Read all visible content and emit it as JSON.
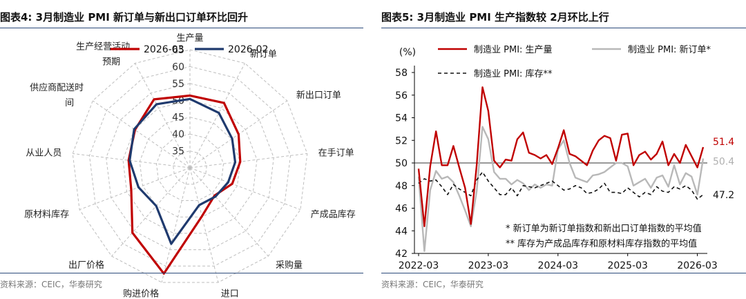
{
  "left": {
    "title": "图表4:  3月制造业 PMI 新订单与新出口订单环比回升",
    "source": "资料来源：CEIC，华泰研究"
  },
  "right": {
    "title": "图表5:  3月制造业 PMI 生产指数较 2月环比上行",
    "source": "资料来源：CEIC，华泰研究"
  },
  "chart_data": [
    {
      "type": "radar",
      "title": "3月制造业 PMI 新订单与新出口订单环比回升",
      "axes": [
        "生产量",
        "新订单",
        "新出口订单",
        "在手订单",
        "产成品库存",
        "采购量",
        "进口",
        "购进价格",
        "出厂价格",
        "原材料库存",
        "从业人员",
        "供应商配送时间",
        "生产经营活动预期"
      ],
      "rings": [
        35,
        40,
        45,
        50,
        55,
        60,
        65
      ],
      "range": [
        30,
        65
      ],
      "series": [
        {
          "name": "2026-03",
          "color": "#c00000",
          "values": [
            51.4,
            51.7,
            47.5,
            45.0,
            43.4,
            41.0,
            44.8,
            62.3,
            55.7,
            48.6,
            48.3,
            49.8,
            52.9
          ]
        },
        {
          "name": "2026-02",
          "color": "#1f3a6e",
          "values": [
            50.4,
            48.4,
            45.2,
            43.5,
            42.1,
            41.4,
            41.4,
            53.2,
            45.1,
            46.3,
            48.0,
            50.1,
            51.3
          ]
        }
      ],
      "legend": [
        "2026-03",
        "2026-02"
      ]
    },
    {
      "type": "line",
      "title": "3月制造业 PMI 生产指数较 2月环比上行",
      "ylabel": "(%)",
      "ylim": [
        42,
        58
      ],
      "yticks": [
        42,
        44,
        46,
        48,
        50,
        52,
        54,
        56,
        58
      ],
      "xticks": [
        "2022-03",
        "2023-03",
        "2024-03",
        "2025-03",
        "2026-03"
      ],
      "reference_line": 50,
      "series": [
        {
          "name": "制造业 PMI: 生产量",
          "color": "#c00000",
          "end_label": "51.4",
          "values": [
            49.5,
            44.4,
            49.7,
            52.8,
            49.8,
            49.8,
            51.5,
            49.6,
            47.8,
            44.6,
            49.8,
            56.7,
            54.6,
            50.2,
            49.6,
            50.3,
            50.2,
            52.1,
            52.7,
            50.9,
            50.7,
            50.4,
            50.7,
            49.9,
            51.3,
            52.9,
            50.8,
            50.6,
            50.2,
            49.8,
            51.1,
            52.0,
            52.4,
            52.2,
            50.2,
            52.5,
            52.6,
            49.8,
            50.7,
            51.0,
            50.3,
            50.8,
            51.9,
            49.8,
            50.8,
            50.0,
            51.6,
            50.6,
            49.6,
            51.4
          ]
        },
        {
          "name": "制造业 PMI: 新订单*",
          "color": "#b8b8b8",
          "end_label": "50.4",
          "values": [
            48.8,
            42.2,
            47.6,
            49.3,
            48.6,
            48.8,
            48.3,
            47.1,
            45.8,
            44.4,
            47.5,
            53.2,
            52.1,
            49.2,
            48.6,
            48.6,
            48.1,
            48.5,
            48.2,
            47.6,
            48.1,
            47.8,
            48.1,
            48.0,
            51.2,
            52.0,
            50.0,
            48.7,
            48.5,
            48.3,
            48.9,
            49.0,
            49.2,
            49.6,
            50.0,
            50.0,
            49.7,
            48.0,
            48.3,
            48.6,
            47.8,
            48.7,
            48.9,
            47.9,
            49.8,
            48.1,
            49.1,
            48.8,
            47.2,
            50.4
          ]
        },
        {
          "name": "制造业 PMI: 库存**",
          "color": "#111111",
          "dash": "5,4",
          "end_label": "47.2",
          "values": [
            48.2,
            48.6,
            48.4,
            48.5,
            47.9,
            47.2,
            48.1,
            47.7,
            47.4,
            47.1,
            48.5,
            49.2,
            48.4,
            47.8,
            47.2,
            47.2,
            47.8,
            47.1,
            48.0,
            47.9,
            47.8,
            48.0,
            48.2,
            48.4,
            48.0,
            47.6,
            47.7,
            48.0,
            47.8,
            47.3,
            47.4,
            47.7,
            48.2,
            47.4,
            47.4,
            47.3,
            47.8,
            47.4,
            47.0,
            47.4,
            47.2,
            47.9,
            47.5,
            47.4,
            47.9,
            47.7,
            48.0,
            47.6,
            46.8,
            47.2
          ]
        }
      ],
      "notes": [
        "*  新订单为新订单指数和新出口订单指数的平均值",
        "**  库存为产成品库存和原材料库存指数的平均值"
      ]
    }
  ]
}
